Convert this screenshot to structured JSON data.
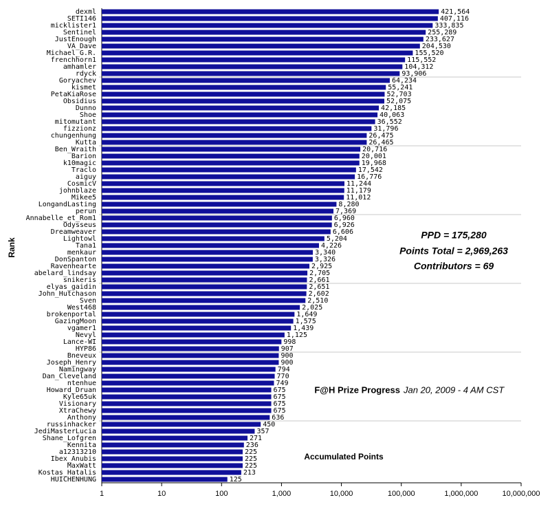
{
  "chart_data": {
    "type": "barh",
    "title": "F@H Prize Progress",
    "subtitle": "Jan 20, 2009 - 4 AM CST",
    "x_label": "Accumulated Points",
    "y_label": "Rank",
    "annotations": [
      "PPD = 175,280",
      "Points Total = 2,969,263",
      "Contributors = 69"
    ],
    "log_scale": true,
    "color": "#10109a",
    "xlim": [
      1,
      10000000
    ],
    "xticks": [
      1,
      10,
      100,
      {
        "value": 1000,
        "label": "1,000"
      },
      {
        "value": 10000,
        "label": "10,000"
      },
      {
        "value": 100000,
        "label": "100,000"
      },
      {
        "value": 1000000,
        "label": "1,000,000"
      },
      {
        "value": 10000000,
        "label": "10,000,000"
      }
    ],
    "categories": [
      "dexml",
      "SETI146",
      "micklister1",
      "Sentinel",
      "JustEnough",
      "VA_Dave",
      "Michael_G.R.",
      "frenchhorn1",
      "amhamler",
      "rdyck",
      "Goryachev",
      "kismet",
      "PetaKiaRose",
      "Obsidius",
      "Dunno",
      "Shoe",
      "mitomutant",
      "fizzionz",
      "chungenhung",
      "Kutta",
      "Ben_Wraith",
      "Barion",
      "k10magic",
      "Traclo",
      "aiguy",
      "CosmicV",
      "johnblaze",
      "Mikee5",
      "LongandLasting",
      "perun",
      "Annabelle_et_Rom1",
      "Odysseus",
      "Dreamweaver",
      "Lightowl",
      "Tana1",
      "menkaur",
      "DonSpanton",
      "Ravenhearte",
      "abelard_lindsay",
      "snikeris",
      "elyas_gaidin",
      "John_Hutchason",
      "Sven",
      "West468",
      "brokenportal",
      "GazingMoon",
      "vgamer1",
      "Nevyl",
      "Lance-WI",
      "HYP86",
      "Bneveux",
      "Joseph_Henry",
      "Namingway",
      "Dan_Cleveland",
      "ntenhue",
      "Howard_Druan",
      "Kyle65uk",
      "Visionary",
      "XtraChewy",
      "Anthony",
      "russinhacker",
      "JediMasterLucia",
      "Shane_Lofgren",
      "Kennita",
      "a12313210",
      "Ibex_Anubis",
      "MaxWatt",
      "Kostas_Hatalis",
      "HUICHENHUNG"
    ],
    "values": [
      421564,
      407116,
      333835,
      255289,
      233627,
      204530,
      155520,
      115552,
      104312,
      93906,
      64234,
      55241,
      52703,
      52075,
      42185,
      40063,
      36552,
      31796,
      26475,
      26465,
      20716,
      20001,
      19968,
      17542,
      16776,
      11244,
      11179,
      11012,
      8280,
      7369,
      6960,
      6926,
      6606,
      5204,
      4226,
      3340,
      3326,
      2925,
      2705,
      2661,
      2651,
      2602,
      2510,
      2025,
      1649,
      1575,
      1439,
      1125,
      998,
      907,
      900,
      900,
      794,
      770,
      749,
      675,
      675,
      675,
      675,
      636,
      450,
      357,
      271,
      236,
      225,
      225,
      225,
      213,
      125
    ],
    "value_labels": [
      "421,564",
      "407,116",
      "333,835",
      "255,289",
      "233,627",
      "204,530",
      "155,520",
      "115,552",
      "104,312",
      "93,906",
      "64,234",
      "55,241",
      "52,703",
      "52,075",
      "42,185",
      "40,063",
      "36,552",
      "31,796",
      "26,475",
      "26,465",
      "20,716",
      "20,001",
      "19,968",
      "17,542",
      "16,776",
      "11,244",
      "11,179",
      "11,012",
      "8,280",
      "7,369",
      "6,960",
      "6,926",
      "6,606",
      "5,204",
      "4,226",
      "3,340",
      "3,326",
      "2,925",
      "2,705",
      "2,661",
      "2,651",
      "2,602",
      "2,510",
      "2,025",
      "1,649",
      "1,575",
      "1,439",
      "1,125",
      "998",
      "907",
      "900",
      "900",
      "794",
      "770",
      "749",
      "675",
      "675",
      "675",
      "675",
      "636",
      "450",
      "357",
      "271",
      "236",
      "225",
      "225",
      "225",
      "213",
      "125"
    ]
  }
}
